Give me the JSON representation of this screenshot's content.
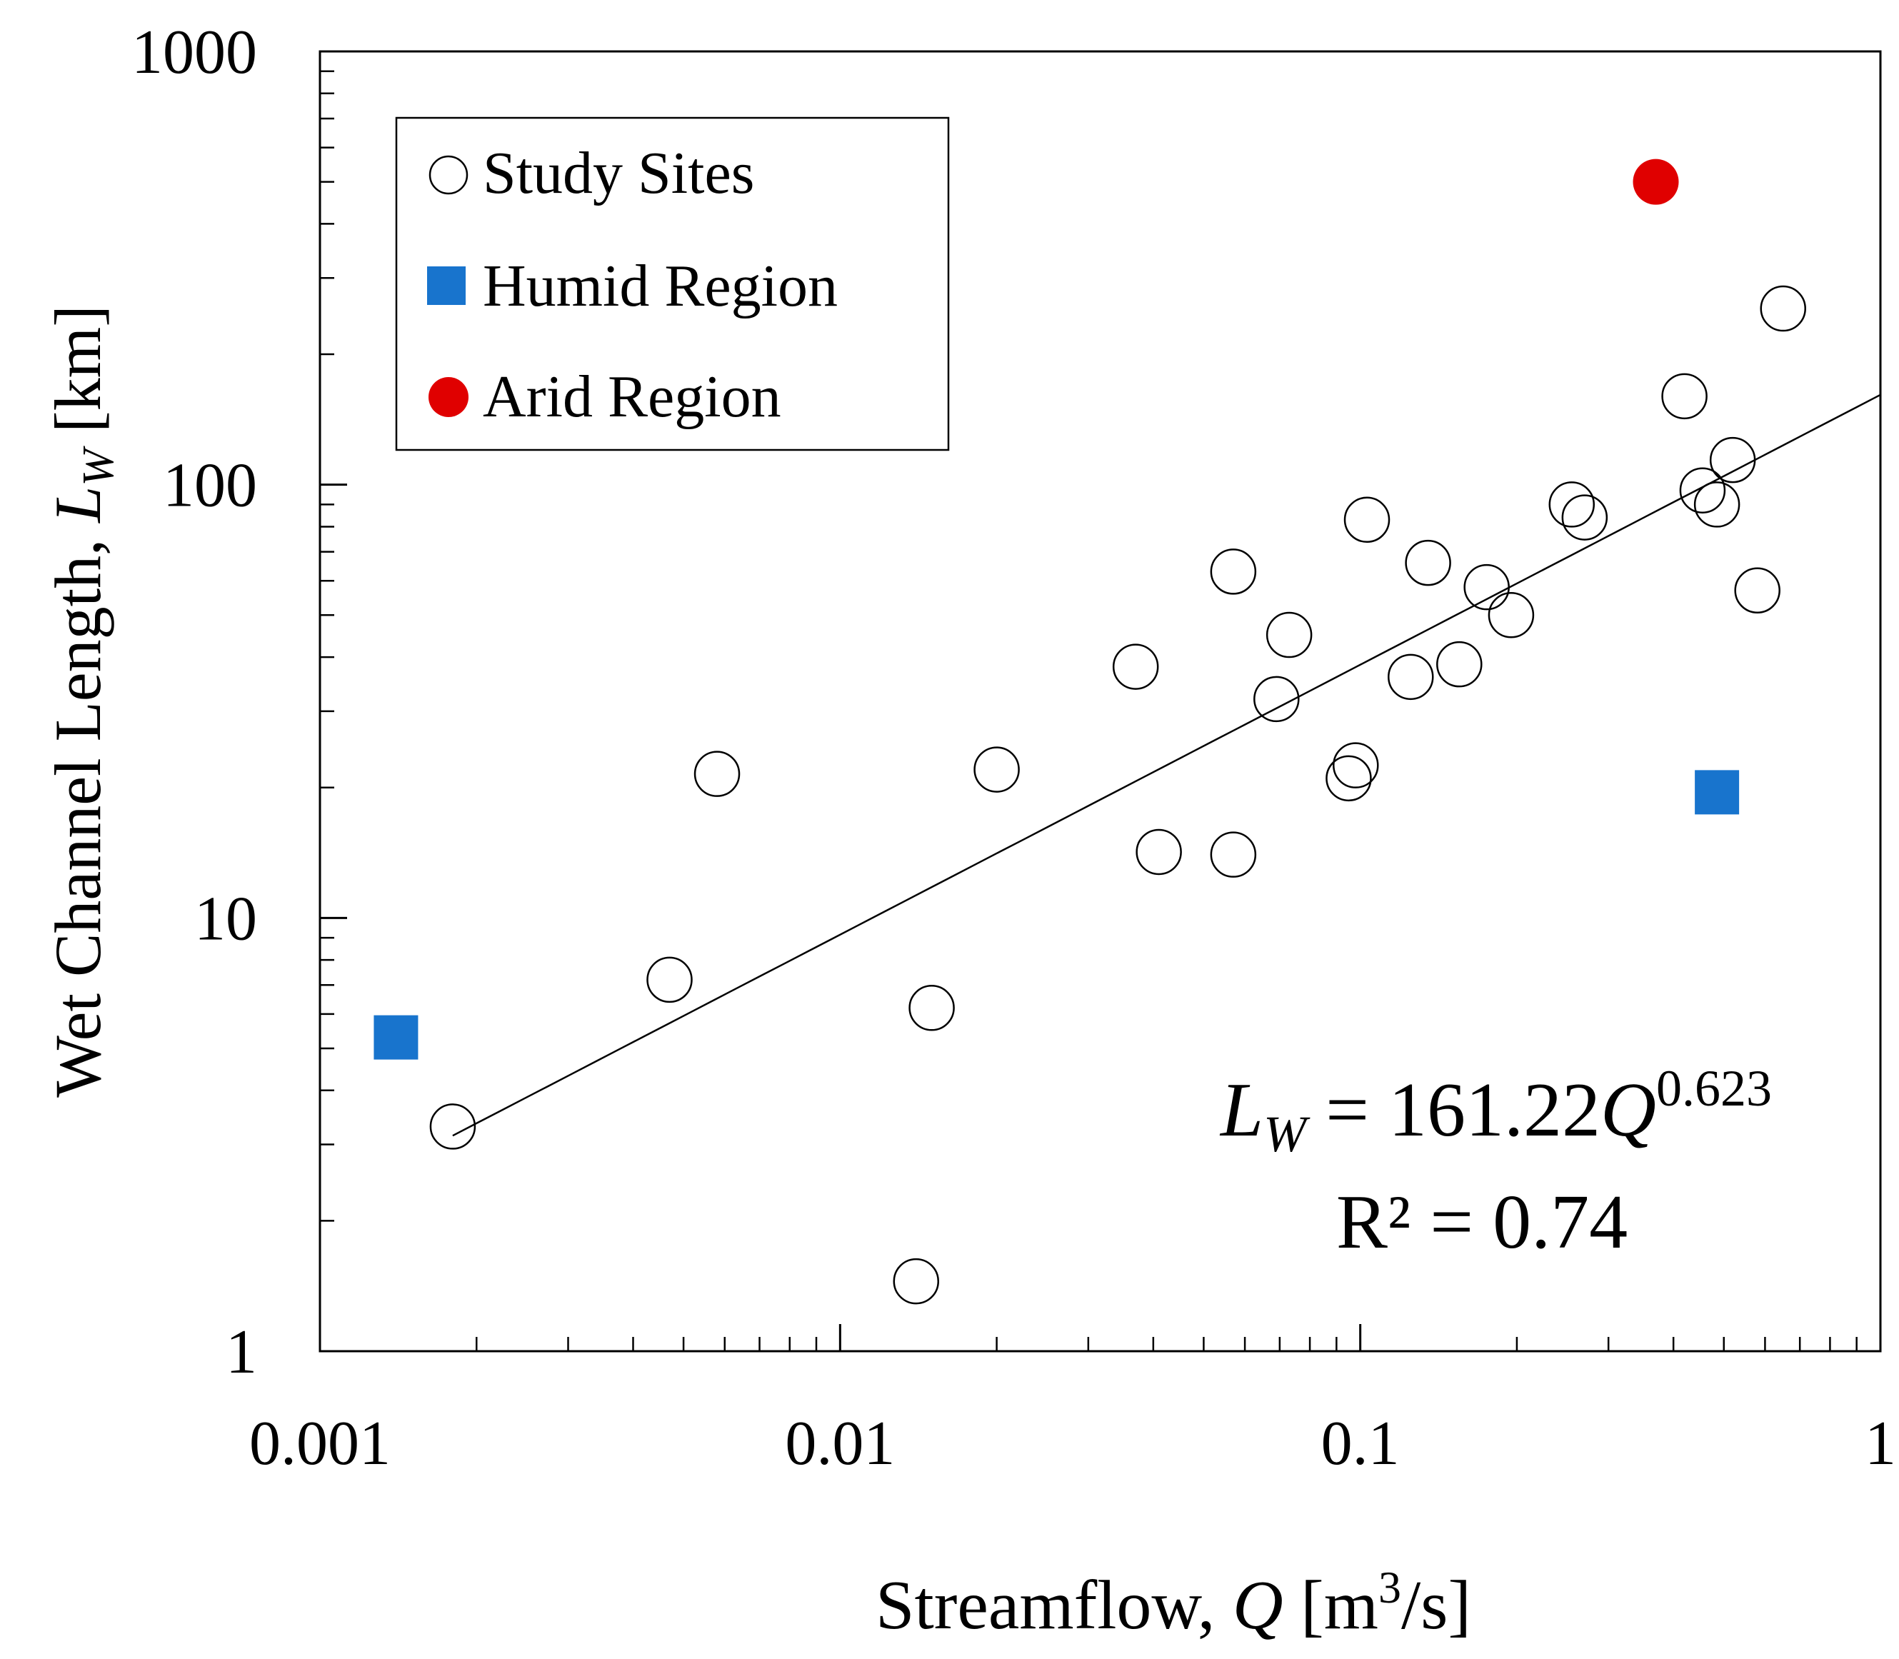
{
  "chart_data": {
    "type": "scatter",
    "xscale": "log",
    "yscale": "log",
    "xlim": [
      0.001,
      1
    ],
    "ylim": [
      1,
      1000
    ],
    "xticks": [
      0.001,
      0.01,
      0.1,
      1
    ],
    "xtick_labels": [
      "0.001",
      "0.01",
      "0.1",
      "1"
    ],
    "yticks": [
      1,
      10,
      100,
      1000
    ],
    "ytick_labels": [
      "1",
      "10",
      "100",
      "1000"
    ],
    "xlabel": {
      "prefix": "Streamflow, ",
      "var": "Q",
      "unit_open": " [m",
      "unit_sup": "3",
      "unit_close": "/s]"
    },
    "ylabel": {
      "prefix": "Wet Channel Length, ",
      "var": "L",
      "sub": "W",
      "unit": " [km]"
    },
    "legend": {
      "position": "top-left",
      "entries": [
        {
          "label": "Study Sites",
          "marker": "open-circle"
        },
        {
          "label": "Humid Region",
          "marker": "square",
          "color": "#1874cd"
        },
        {
          "label": "Arid Region",
          "marker": "filled-circle",
          "color": "#e00000"
        }
      ]
    },
    "annotation": {
      "var": "L",
      "sub": "W",
      "eq_text": " = 161.22",
      "q_var": "Q",
      "exponent": "0.623",
      "r2_text": "R² = 0.74"
    },
    "fit": {
      "type": "power",
      "coef": 161.22,
      "exponent": 0.623,
      "x_range": [
        0.0018,
        1
      ]
    },
    "series": [
      {
        "name": "Study Sites",
        "marker": "open-circle",
        "points": [
          [
            0.0018,
            3.3
          ],
          [
            0.0047,
            7.2
          ],
          [
            0.0058,
            21.5
          ],
          [
            0.014,
            1.45
          ],
          [
            0.015,
            6.2
          ],
          [
            0.02,
            22
          ],
          [
            0.037,
            38
          ],
          [
            0.041,
            14.2
          ],
          [
            0.057,
            63
          ],
          [
            0.057,
            14
          ],
          [
            0.069,
            32
          ],
          [
            0.073,
            45
          ],
          [
            0.095,
            21
          ],
          [
            0.098,
            22.5
          ],
          [
            0.103,
            83
          ],
          [
            0.125,
            36
          ],
          [
            0.135,
            66
          ],
          [
            0.155,
            38.5
          ],
          [
            0.175,
            58
          ],
          [
            0.195,
            50
          ],
          [
            0.255,
            90
          ],
          [
            0.27,
            84
          ],
          [
            0.42,
            160
          ],
          [
            0.455,
            97
          ],
          [
            0.485,
            90
          ],
          [
            0.52,
            114
          ],
          [
            0.58,
            57
          ],
          [
            0.65,
            255
          ]
        ]
      },
      {
        "name": "Humid Region",
        "marker": "square",
        "color": "#1874cd",
        "points": [
          [
            0.0014,
            5.3
          ],
          [
            0.485,
            19.5
          ]
        ]
      },
      {
        "name": "Arid Region",
        "marker": "filled-circle",
        "color": "#e00000",
        "points": [
          [
            0.37,
            500
          ]
        ]
      }
    ]
  }
}
